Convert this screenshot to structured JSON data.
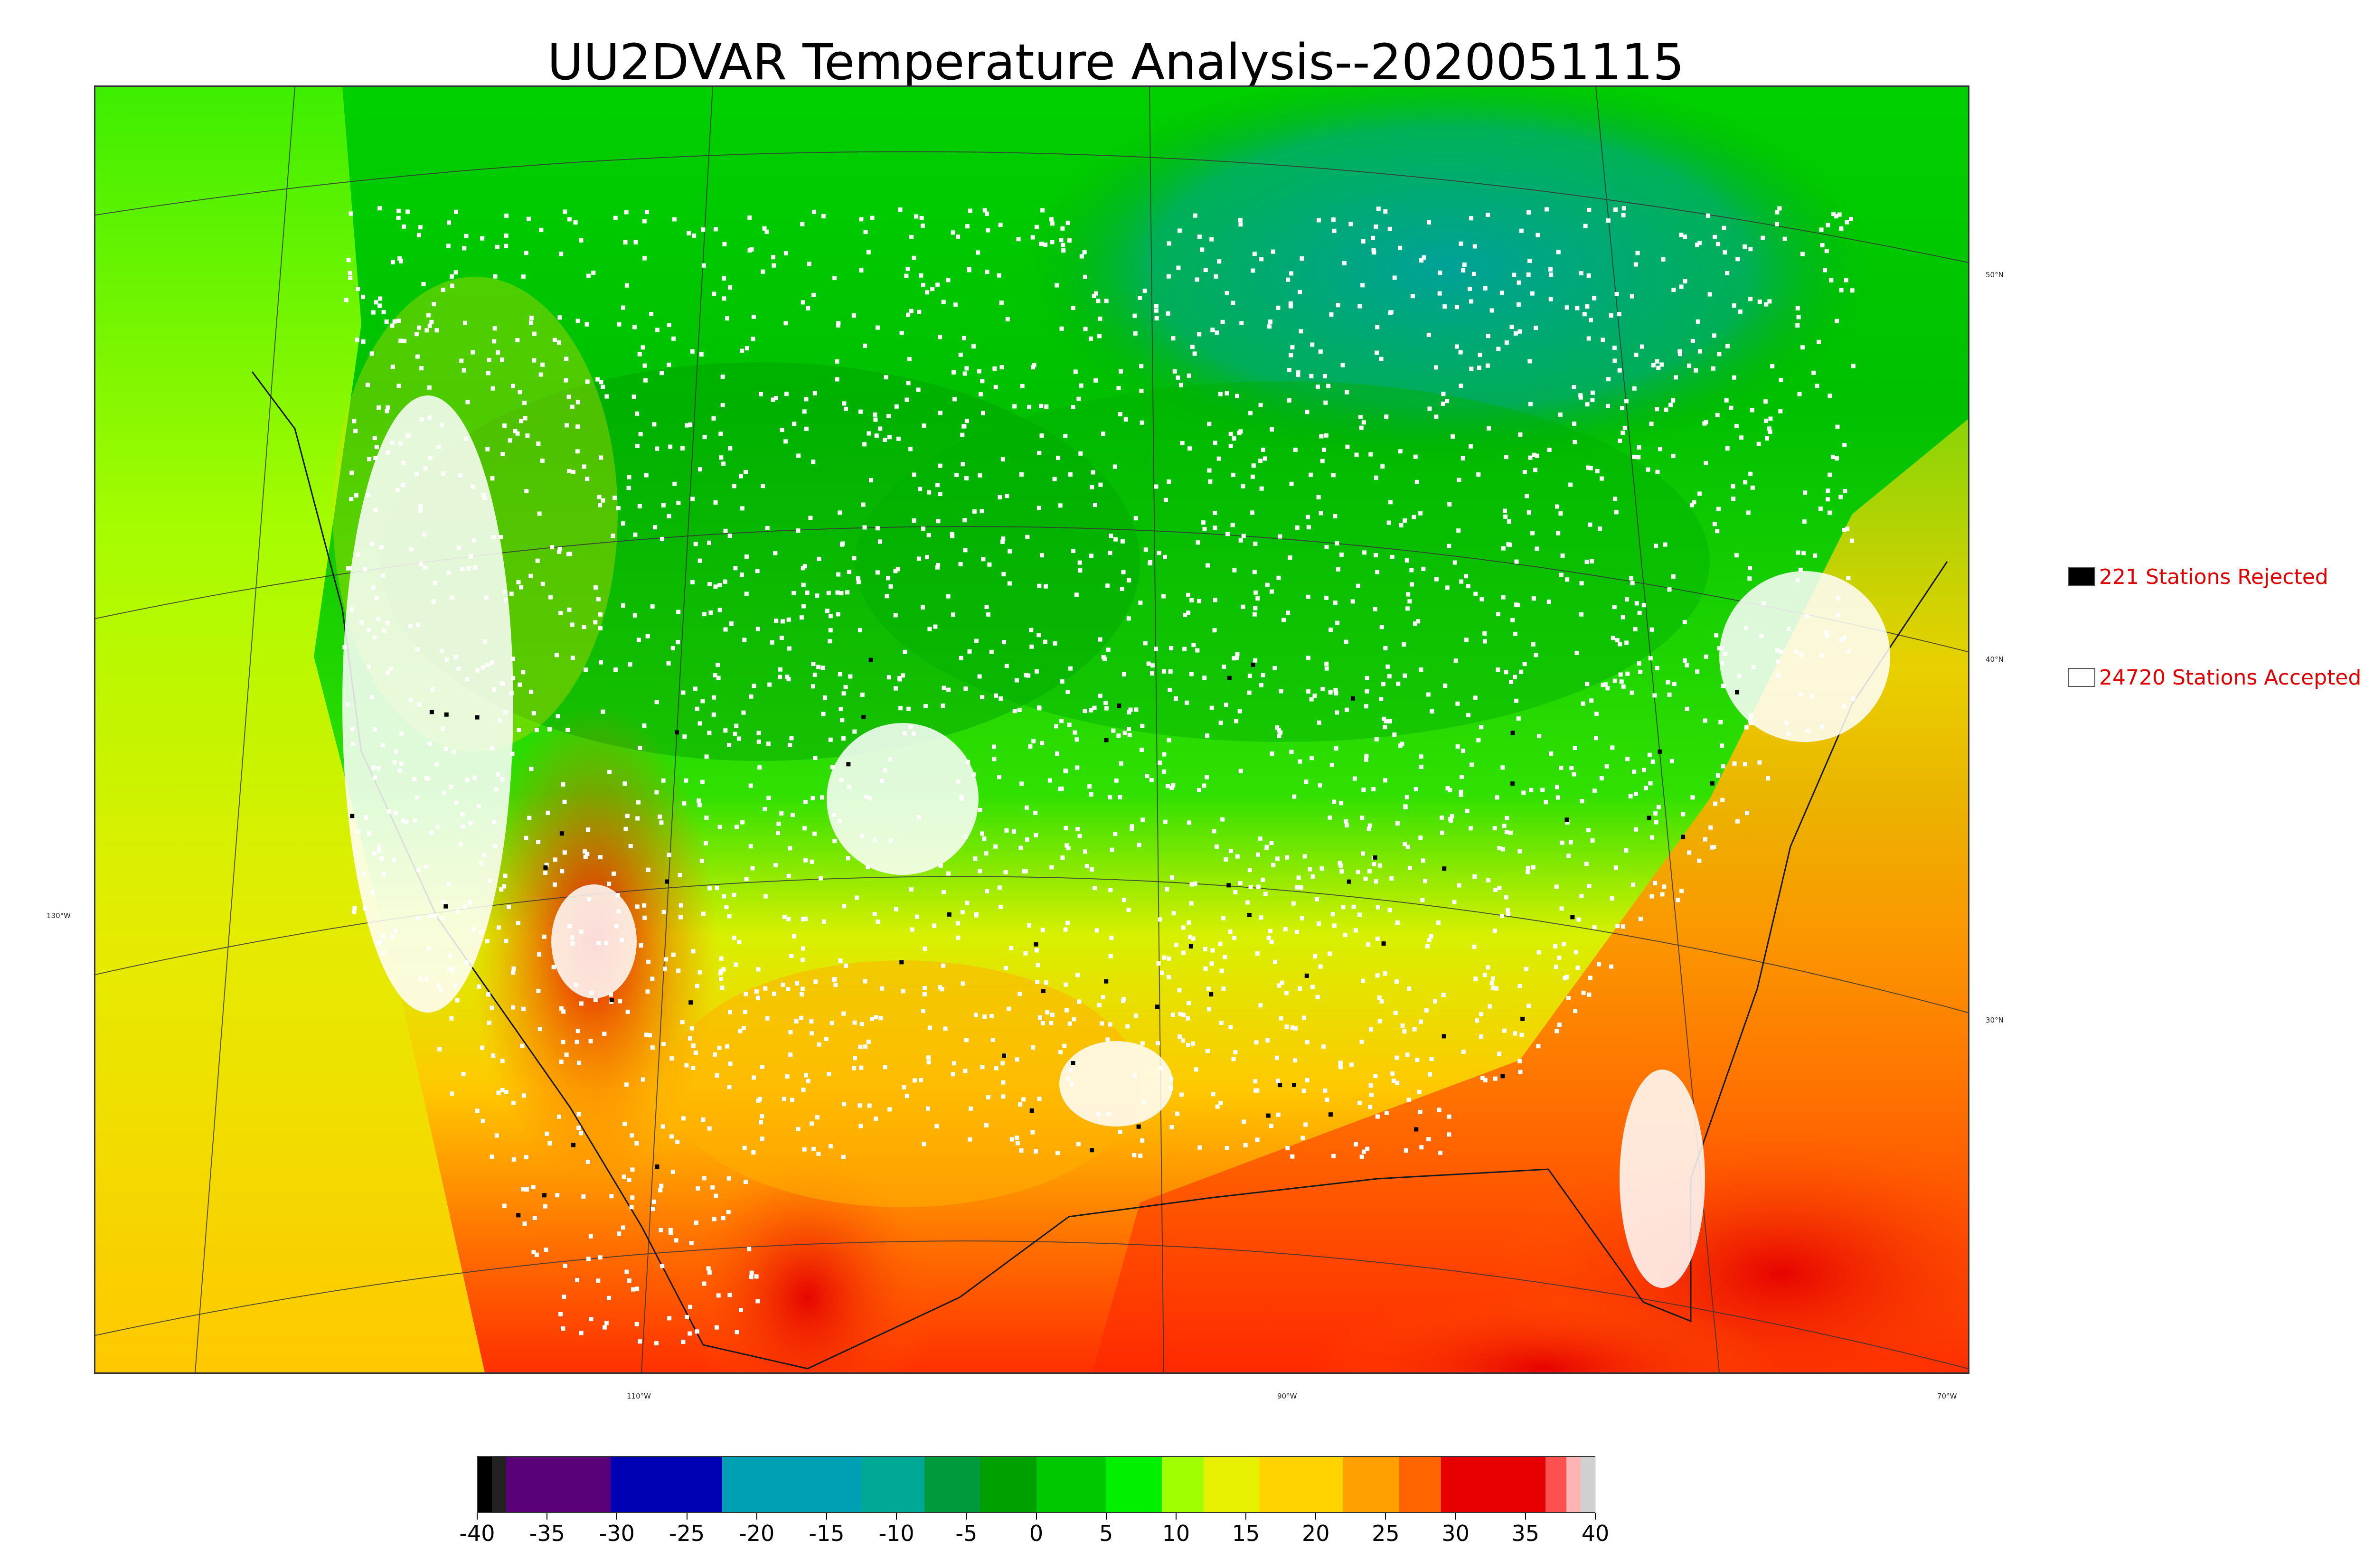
{
  "title": "UU2DVAR Temperature Analysis--2020051115",
  "map": {
    "latitude_labels": [
      {
        "text": "50°N"
      },
      {
        "text": "40°N"
      },
      {
        "text": "30°N"
      }
    ],
    "longitude_labels": [
      {
        "text": "130°W"
      },
      {
        "text": "110°W"
      },
      {
        "text": "90°W"
      },
      {
        "text": "70°W"
      }
    ]
  },
  "legend": {
    "rejected": {
      "label": "221 Stations Rejected",
      "swatch_color": "#000000"
    },
    "accepted": {
      "label": "24720 Stations Accepted",
      "swatch_color": "#ffffff"
    }
  },
  "colorbar": {
    "min": -40,
    "max": 40,
    "tick_labels": [
      "-40",
      "-35",
      "-30",
      "-25",
      "-20",
      "-15",
      "-10",
      "-5",
      "0",
      "5",
      "10",
      "15",
      "20",
      "25",
      "30",
      "35",
      "40"
    ],
    "segments": [
      {
        "from": -40,
        "to": -39,
        "color": "#000000"
      },
      {
        "from": -39,
        "to": -38,
        "color": "#222222"
      },
      {
        "from": -38,
        "to": -30.5,
        "color": "#5a0078"
      },
      {
        "from": -30.5,
        "to": -22.5,
        "color": "#0000b4"
      },
      {
        "from": -22.5,
        "to": -12.5,
        "color": "#00a0b4"
      },
      {
        "from": -12.5,
        "to": -8,
        "color": "#00a896"
      },
      {
        "from": -8,
        "to": -4,
        "color": "#009a3c"
      },
      {
        "from": -4,
        "to": 0,
        "color": "#00a000"
      },
      {
        "from": 0,
        "to": 5,
        "color": "#00c800"
      },
      {
        "from": 5,
        "to": 9,
        "color": "#00f000"
      },
      {
        "from": 9,
        "to": 12,
        "color": "#a0ff00"
      },
      {
        "from": 12,
        "to": 16,
        "color": "#e6f000"
      },
      {
        "from": 16,
        "to": 22,
        "color": "#ffd200"
      },
      {
        "from": 22,
        "to": 26,
        "color": "#ffa000"
      },
      {
        "from": 26,
        "to": 29,
        "color": "#ff6400"
      },
      {
        "from": 29,
        "to": 36.5,
        "color": "#e60000"
      },
      {
        "from": 36.5,
        "to": 38,
        "color": "#ff5050"
      },
      {
        "from": 38,
        "to": 39,
        "color": "#ffb4b4"
      },
      {
        "from": 39,
        "to": 40,
        "color": "#d0d0d0"
      }
    ]
  },
  "colors": {
    "warm": "#ff3000",
    "hot": "#e60000",
    "mild": "#ffd200",
    "cool": "#00c800",
    "cold": "#00a0a0"
  }
}
